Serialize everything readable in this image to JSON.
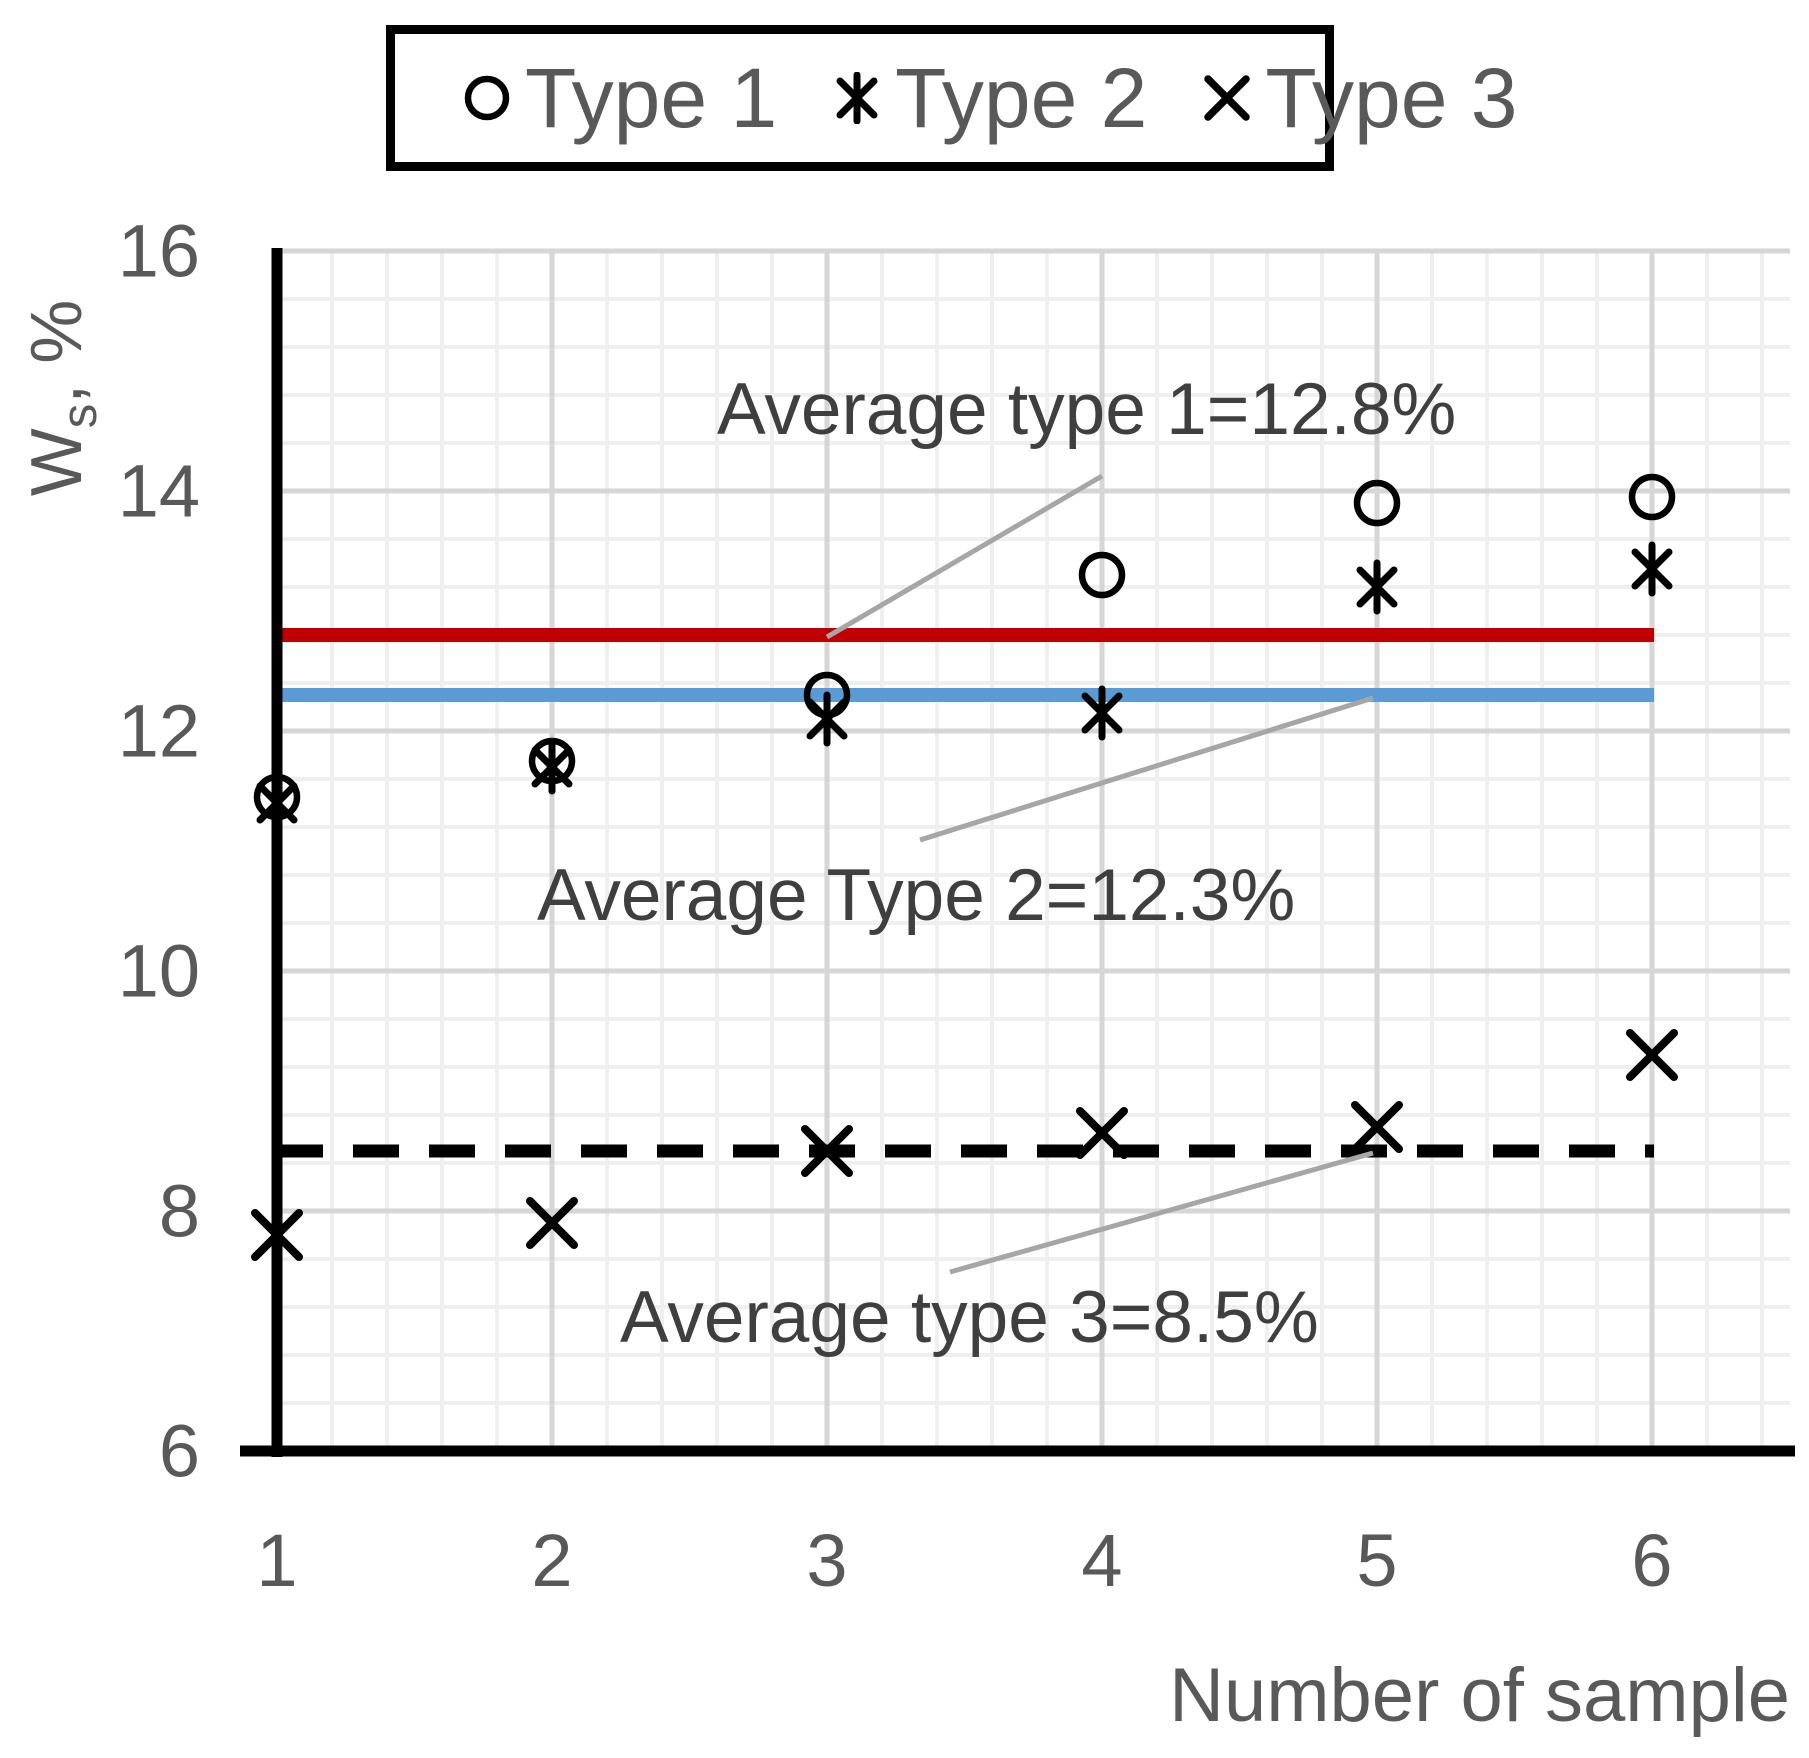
{
  "colors": {
    "avg_type1_line": "#c00000",
    "avg_type2_line": "#5b9bd5",
    "avg_type3_line": "#000000",
    "marker": "#000000",
    "grid_major": "#d6d6d6",
    "grid_minor": "#efefef",
    "leader_line": "#a6a6a6",
    "tick_text": "#595959",
    "annotation_text": "#3f3f3f"
  },
  "legend": {
    "items": [
      {
        "label": "Type 1",
        "marker": "circle"
      },
      {
        "label": "Type 2",
        "marker": "asterisk"
      },
      {
        "label": "Type 3",
        "marker": "x"
      }
    ]
  },
  "axes": {
    "y_title_main": "W",
    "y_title_sub": "s",
    "y_title_rest": ", %",
    "x_title": "Number of sample",
    "y_ticks": [
      "16",
      "14",
      "12",
      "10",
      "8",
      "6"
    ],
    "x_ticks": [
      "1",
      "2",
      "3",
      "4",
      "5",
      "6"
    ]
  },
  "annotations": [
    {
      "text": "Average type 1=12.8%",
      "value": 12.8
    },
    {
      "text": "Average Type 2=12.3%",
      "value": 12.3
    },
    {
      "text": "Average type 3=8.5%",
      "value": 8.5
    }
  ],
  "chart_data": {
    "type": "scatter",
    "title": "",
    "xlabel": "Number of sample",
    "ylabel": "Ws, %",
    "x": [
      1,
      2,
      3,
      4,
      5,
      6
    ],
    "xlim": [
      1,
      6
    ],
    "ylim": [
      6,
      16
    ],
    "y_major_step": 2,
    "y_minor_step": 0.4,
    "grid": true,
    "legend_position": "top",
    "series": [
      {
        "name": "Type 1",
        "marker": "circle",
        "values": [
          11.45,
          11.75,
          12.3,
          13.3,
          13.9,
          13.95
        ]
      },
      {
        "name": "Type 2",
        "marker": "asterisk",
        "values": [
          11.4,
          11.7,
          12.1,
          12.15,
          13.2,
          13.35
        ]
      },
      {
        "name": "Type 3",
        "marker": "x",
        "values": [
          7.8,
          7.9,
          8.5,
          8.65,
          8.7,
          9.3
        ]
      }
    ],
    "average_lines": [
      {
        "name": "Average type 1",
        "value": 12.8,
        "style": "solid",
        "color": "#c00000"
      },
      {
        "name": "Average Type 2",
        "value": 12.3,
        "style": "solid",
        "color": "#5b9bd5"
      },
      {
        "name": "Average type 3",
        "value": 8.5,
        "style": "dashed",
        "color": "#000000"
      }
    ]
  }
}
